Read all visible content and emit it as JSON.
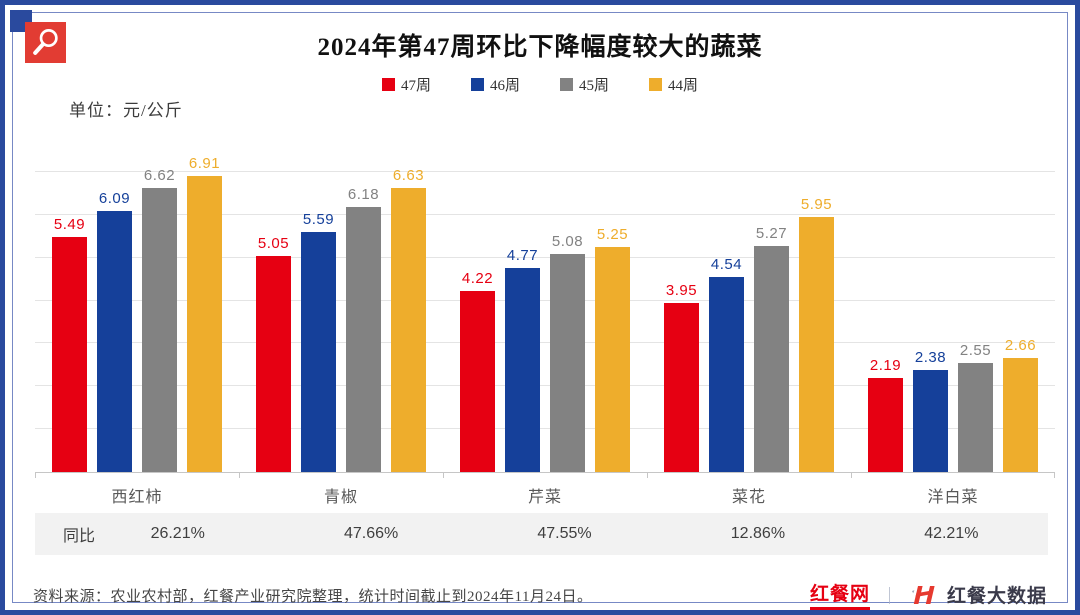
{
  "header": {
    "title": "2024年第47周环比下降幅度较大的蔬菜",
    "unit_label": "单位：元/公斤"
  },
  "legend": [
    {
      "label": "47周",
      "color": "#e60012"
    },
    {
      "label": "46周",
      "color": "#15409a"
    },
    {
      "label": "45周",
      "color": "#828282"
    },
    {
      "label": "44周",
      "color": "#eead2c"
    }
  ],
  "chart_data": {
    "type": "bar",
    "title": "2024年第47周环比下降幅度较大的蔬菜",
    "ylabel": "元/公斤",
    "xlabel": "",
    "categories": [
      "西红柿",
      "青椒",
      "芹菜",
      "菜花",
      "洋白菜"
    ],
    "series": [
      {
        "name": "47周",
        "color": "#e60012",
        "values": [
          5.49,
          5.05,
          4.22,
          3.95,
          2.19
        ]
      },
      {
        "name": "46周",
        "color": "#15409a",
        "values": [
          6.09,
          5.59,
          4.77,
          4.54,
          2.38
        ]
      },
      {
        "name": "45周",
        "color": "#828282",
        "values": [
          6.62,
          6.18,
          5.08,
          5.27,
          2.55
        ]
      },
      {
        "name": "44周",
        "color": "#eead2c",
        "values": [
          6.91,
          6.63,
          5.25,
          5.95,
          2.66
        ]
      }
    ],
    "ylim": [
      0,
      7.7
    ],
    "grid": "horizontal, every 1 unit",
    "legend_position": "top",
    "data_labels": true
  },
  "yoy": {
    "label": "同比",
    "values": [
      "26.21%",
      "47.66%",
      "47.55%",
      "12.86%",
      "42.21%"
    ]
  },
  "footer": {
    "source": "资料来源：农业农村部，红餐产业研究院整理，统计时间截止到2024年11月24日。",
    "brand_left": "红餐网",
    "divider": "｜",
    "brand_right": "红餐大数据"
  },
  "theme": {
    "frame_blue": "#2a4a9e",
    "badge_red": "#e23c33",
    "yoy_band_bg": "#f2f2f2",
    "brand_red": "#e60012"
  }
}
